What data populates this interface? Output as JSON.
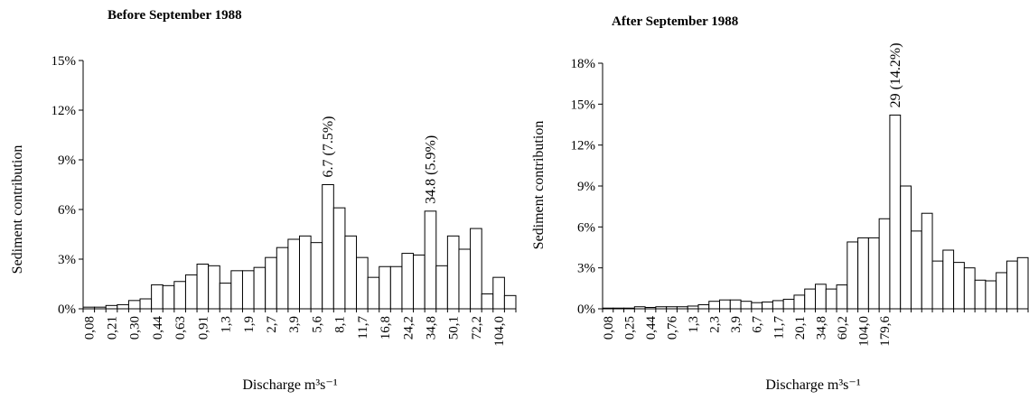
{
  "chart_data": [
    {
      "type": "bar",
      "title": "Before September 1988",
      "xlabel": "Discharge m³s⁻¹",
      "ylabel": "Sediment contribution",
      "ylim": [
        0,
        15
      ],
      "yticks": [
        "0%",
        "3%",
        "6%",
        "9%",
        "12%",
        "15%"
      ],
      "ytick_values": [
        0,
        3,
        6,
        9,
        12,
        15
      ],
      "xtick_labels": [
        "0,08",
        "0,21",
        "0,30",
        "0,44",
        "0,63",
        "0,91",
        "1,3",
        "1,9",
        "2,7",
        "3,9",
        "5,6",
        "8,1",
        "11,7",
        "16,8",
        "24,2",
        "34,8",
        "50,1",
        "72,2",
        "104,0"
      ],
      "values": [
        0.1,
        0.1,
        0.2,
        0.25,
        0.5,
        0.6,
        1.45,
        1.4,
        1.65,
        2.05,
        2.7,
        2.6,
        1.55,
        2.3,
        2.3,
        2.5,
        3.1,
        3.7,
        4.2,
        4.4,
        4.0,
        7.5,
        6.1,
        4.4,
        3.1,
        1.9,
        2.55,
        2.55,
        3.35,
        3.25,
        5.9,
        2.6,
        4.4,
        3.6,
        4.85,
        0.9,
        1.9,
        0.8
      ],
      "annotations": [
        {
          "text": "6.7 (7.5%)",
          "bar_index": 21
        },
        {
          "text": "34.8 (5.9%)",
          "bar_index": 30
        }
      ],
      "grid": false
    },
    {
      "type": "bar",
      "title": "After September 1988",
      "xlabel": "Discharge m³s⁻¹",
      "ylabel": "Sediment contribution",
      "ylim": [
        0,
        18
      ],
      "yticks": [
        "0%",
        "3%",
        "6%",
        "9%",
        "12%",
        "15%",
        "18%"
      ],
      "ytick_values": [
        0,
        3,
        6,
        9,
        12,
        15,
        18
      ],
      "xtick_labels": [
        "0,08",
        "0,25",
        "0,44",
        "0,76",
        "1,3",
        "2,3",
        "3,9",
        "6,7",
        "11,7",
        "20,1",
        "34,8",
        "60,2",
        "104,0",
        "179,6"
      ],
      "values": [
        0.05,
        0.05,
        0.05,
        0.15,
        0.1,
        0.15,
        0.15,
        0.15,
        0.2,
        0.3,
        0.55,
        0.65,
        0.65,
        0.55,
        0.45,
        0.5,
        0.6,
        0.7,
        1.0,
        1.45,
        1.8,
        1.45,
        1.75,
        4.9,
        5.2,
        5.2,
        6.6,
        14.2,
        9.0,
        5.7,
        7.0,
        3.5,
        4.3,
        3.4,
        3.0,
        2.1,
        2.05,
        2.65,
        3.5,
        3.75
      ],
      "annotations": [
        {
          "text": "29 (14.2%)",
          "bar_index": 27
        }
      ],
      "grid": false
    }
  ]
}
